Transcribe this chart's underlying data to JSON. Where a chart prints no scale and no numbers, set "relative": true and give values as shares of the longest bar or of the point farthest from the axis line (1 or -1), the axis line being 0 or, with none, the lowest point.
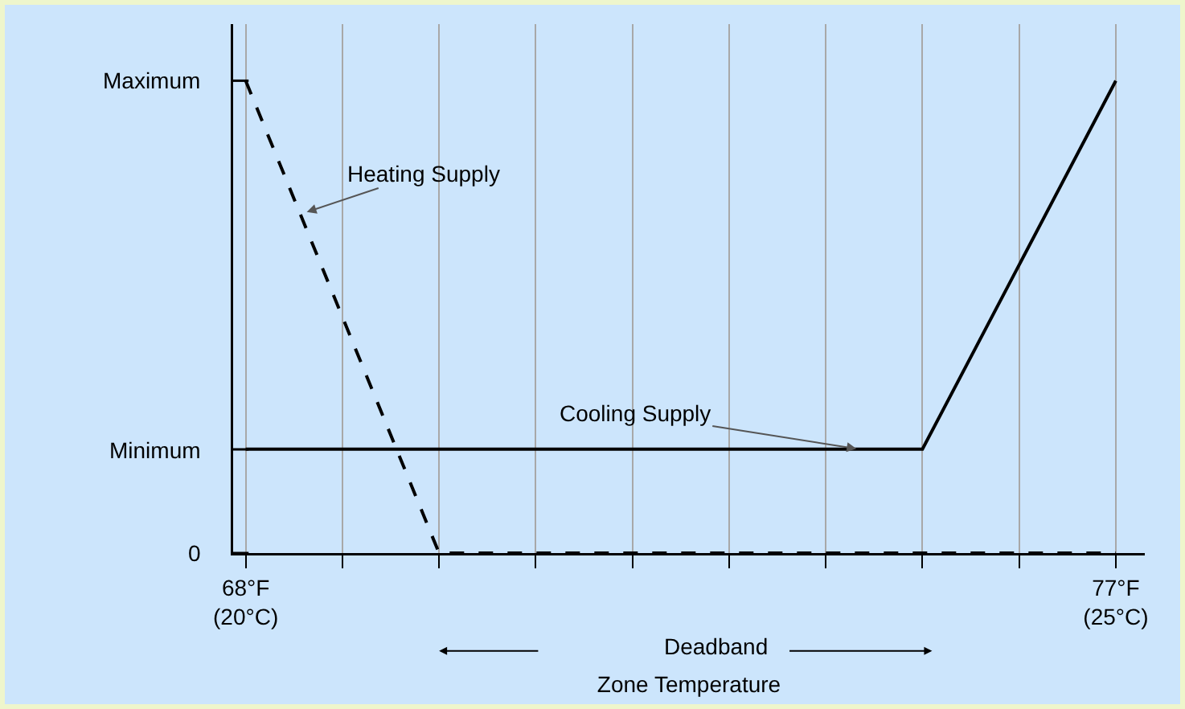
{
  "chart_data": {
    "type": "line",
    "xlabel": "Zone Temperature",
    "categories": [
      "68°F\n(20°C)",
      null,
      null,
      null,
      null,
      null,
      null,
      null,
      null,
      "77°F\n(25°C)"
    ],
    "relative": true,
    "grid": "x",
    "marker": "none",
    "series": [
      {
        "color": "#000000",
        "line_style": "dashed",
        "values": [
          1,
          0.5,
          0,
          0,
          0,
          0,
          0,
          0,
          0,
          0
        ]
      },
      {
        "color": "#000000",
        "line_style": "solid",
        "values": [
          0.22,
          0.22,
          0.22,
          0.22,
          0.22,
          0.22,
          0.22,
          0.22,
          0.61,
          1
        ]
      }
    ],
    "annotations": [
      "Heating Supply",
      "Cooling Supply",
      "Deadband",
      "Maximum",
      "Minimum",
      "0"
    ]
  }
}
